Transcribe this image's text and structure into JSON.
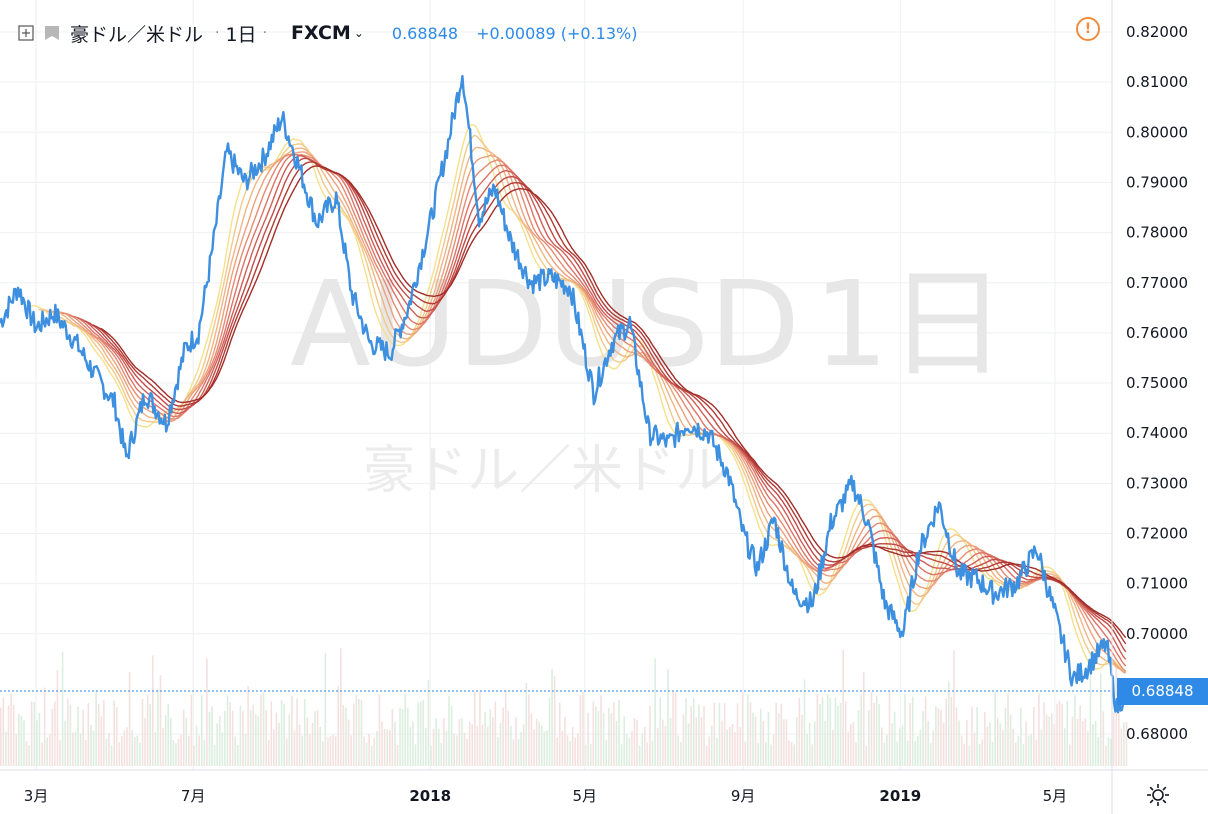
{
  "header": {
    "symbol_name": "豪ドル／米ドル",
    "interval": "1日",
    "exchange": "FXCM",
    "last_price": "0.68848",
    "change": "+0.00089 (+0.13%)"
  },
  "watermark": {
    "symbol": "AUDUSD",
    "interval": "1日",
    "name": "豪ドル／米ドル"
  },
  "price_axis": {
    "current_price_label": "0.68848"
  },
  "colors": {
    "price_line": "#3d8fe0",
    "ribbon": [
      "#f5e08c",
      "#f3c98a",
      "#f0b584",
      "#eca07c",
      "#e58a72",
      "#dc7467",
      "#cf5e57",
      "#c14a46",
      "#b03a35",
      "#a12d28"
    ],
    "volume_up": "#dceedf",
    "volume_down": "#f4e1df",
    "grid": "#eef0f3",
    "accent": "#2e8ae6"
  },
  "chart_data": {
    "type": "line",
    "title": "豪ドル／米ドル · 1日 · FXCM",
    "ylim": [
      0.6725,
      0.8245
    ],
    "y_ticks": [
      "0.82000",
      "0.81000",
      "0.80000",
      "0.79000",
      "0.78000",
      "0.77000",
      "0.76000",
      "0.75000",
      "0.74000",
      "0.73000",
      "0.72000",
      "0.71000",
      "0.70000",
      "0.68000"
    ],
    "x_ticks": [
      "3月",
      "7月",
      "2018",
      "5月",
      "9月",
      "2019",
      "5月"
    ],
    "last_value": 0.68848,
    "series": [
      {
        "name": "AUDUSD",
        "points": [
          [
            "2017-02-01",
            0.762
          ],
          [
            "2017-02-15",
            0.769
          ],
          [
            "2017-03-01",
            0.761
          ],
          [
            "2017-03-15",
            0.764
          ],
          [
            "2017-04-01",
            0.758
          ],
          [
            "2017-04-15",
            0.752
          ],
          [
            "2017-05-01",
            0.746
          ],
          [
            "2017-05-10",
            0.735
          ],
          [
            "2017-05-25",
            0.748
          ],
          [
            "2017-06-10",
            0.742
          ],
          [
            "2017-06-25",
            0.757
          ],
          [
            "2017-07-05",
            0.76
          ],
          [
            "2017-07-15",
            0.775
          ],
          [
            "2017-07-27",
            0.796
          ],
          [
            "2017-08-10",
            0.79
          ],
          [
            "2017-08-25",
            0.795
          ],
          [
            "2017-09-08",
            0.803
          ],
          [
            "2017-09-20",
            0.794
          ],
          [
            "2017-10-05",
            0.782
          ],
          [
            "2017-10-20",
            0.787
          ],
          [
            "2017-11-01",
            0.768
          ],
          [
            "2017-11-15",
            0.758
          ],
          [
            "2017-12-01",
            0.756
          ],
          [
            "2017-12-15",
            0.765
          ],
          [
            "2018-01-01",
            0.782
          ],
          [
            "2018-01-15",
            0.798
          ],
          [
            "2018-01-26",
            0.812
          ],
          [
            "2018-02-08",
            0.783
          ],
          [
            "2018-02-20",
            0.789
          ],
          [
            "2018-03-05",
            0.778
          ],
          [
            "2018-03-20",
            0.77
          ],
          [
            "2018-04-05",
            0.771
          ],
          [
            "2018-04-20",
            0.769
          ],
          [
            "2018-05-08",
            0.748
          ],
          [
            "2018-05-22",
            0.758
          ],
          [
            "2018-06-05",
            0.762
          ],
          [
            "2018-06-20",
            0.74
          ],
          [
            "2018-07-05",
            0.738
          ],
          [
            "2018-07-20",
            0.742
          ],
          [
            "2018-08-05",
            0.74
          ],
          [
            "2018-08-20",
            0.732
          ],
          [
            "2018-09-01",
            0.72
          ],
          [
            "2018-09-12",
            0.713
          ],
          [
            "2018-09-25",
            0.723
          ],
          [
            "2018-10-10",
            0.708
          ],
          [
            "2018-10-25",
            0.706
          ],
          [
            "2018-11-08",
            0.722
          ],
          [
            "2018-11-25",
            0.73
          ],
          [
            "2018-12-07",
            0.722
          ],
          [
            "2018-12-20",
            0.706
          ],
          [
            "2019-01-03",
            0.7
          ],
          [
            "2019-01-15",
            0.716
          ],
          [
            "2019-01-31",
            0.726
          ],
          [
            "2019-02-15",
            0.712
          ],
          [
            "2019-03-01",
            0.711
          ],
          [
            "2019-03-15",
            0.708
          ],
          [
            "2019-04-01",
            0.71
          ],
          [
            "2019-04-17",
            0.717
          ],
          [
            "2019-05-01",
            0.704
          ],
          [
            "2019-05-15",
            0.691
          ],
          [
            "2019-05-25",
            0.693
          ],
          [
            "2019-06-10",
            0.698
          ],
          [
            "2019-06-18",
            0.685
          ],
          [
            "2019-06-25",
            0.68848
          ]
        ]
      }
    ],
    "ribbon_ma_lengths": [
      8,
      10,
      12,
      14,
      16,
      18,
      20,
      22,
      24,
      26
    ]
  }
}
